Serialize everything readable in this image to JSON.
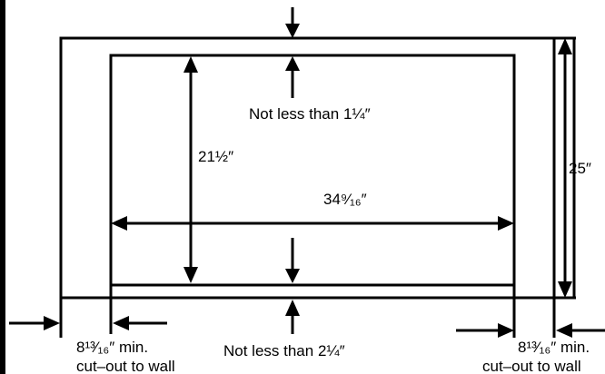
{
  "labels": {
    "top_clearance": "Not less than 1¼″",
    "bottom_clearance": "Not less than 2¼″",
    "inner_height": "21½″",
    "inner_width": "34⁹⁄₁₆″",
    "outer_height": "25″",
    "left_min": "8¹³⁄₁₆″ min.",
    "left_sub": "cut–out to wall",
    "right_min": "8¹³⁄₁₆″ min.",
    "right_sub": "cut–out to wall"
  },
  "colors": {
    "line": "#000000",
    "background": "#ffffff"
  }
}
